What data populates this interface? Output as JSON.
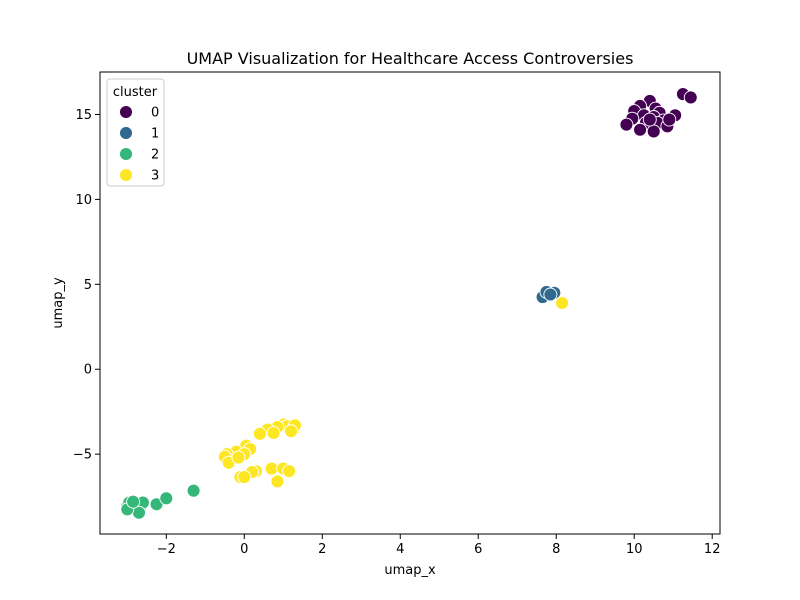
{
  "chart_data": {
    "type": "scatter",
    "title": "UMAP Visualization for Healthcare Access Controversies",
    "xlabel": "umap_x",
    "ylabel": "umap_y",
    "xlim": [
      -3.7,
      12.2
    ],
    "ylim": [
      -9.7,
      17.5
    ],
    "xticks": [
      -2,
      0,
      2,
      4,
      6,
      8,
      10,
      12
    ],
    "yticks": [
      -5,
      0,
      5,
      10,
      15
    ],
    "xtick_labels": [
      "−2",
      "0",
      "2",
      "4",
      "6",
      "8",
      "10",
      "12"
    ],
    "ytick_labels": [
      "−5",
      "0",
      "5",
      "10",
      "15"
    ],
    "grid": false,
    "legend": {
      "title": "cluster",
      "placement": "top-left"
    },
    "series": [
      {
        "name": "0",
        "color": "#440154",
        "points": [
          [
            11.25,
            16.2
          ],
          [
            11.45,
            16.0
          ],
          [
            10.4,
            15.8
          ],
          [
            10.15,
            15.5
          ],
          [
            10.0,
            15.2
          ],
          [
            10.55,
            15.35
          ],
          [
            10.65,
            15.1
          ],
          [
            10.25,
            14.95
          ],
          [
            10.5,
            14.85
          ],
          [
            10.75,
            14.65
          ],
          [
            11.05,
            14.95
          ],
          [
            9.95,
            14.75
          ],
          [
            10.3,
            14.5
          ],
          [
            10.6,
            14.5
          ],
          [
            9.8,
            14.4
          ],
          [
            10.85,
            14.3
          ],
          [
            10.15,
            14.1
          ],
          [
            10.5,
            14.0
          ],
          [
            10.4,
            14.7
          ],
          [
            10.9,
            14.7
          ]
        ]
      },
      {
        "name": "1",
        "color": "#31688e",
        "points": [
          [
            7.65,
            4.25
          ],
          [
            7.75,
            4.55
          ],
          [
            7.95,
            4.5
          ],
          [
            7.85,
            4.4
          ]
        ]
      },
      {
        "name": "2",
        "color": "#35b779",
        "points": [
          [
            -3.0,
            -8.05
          ],
          [
            -2.95,
            -7.85
          ],
          [
            -2.8,
            -7.95
          ],
          [
            -2.65,
            -8.05
          ],
          [
            -2.6,
            -7.85
          ],
          [
            -2.7,
            -8.45
          ],
          [
            -2.25,
            -7.95
          ],
          [
            -2.0,
            -7.6
          ],
          [
            -1.3,
            -7.15
          ],
          [
            -3.0,
            -8.25
          ],
          [
            -2.85,
            -7.8
          ]
        ]
      },
      {
        "name": "3",
        "color": "#fde725",
        "points": [
          [
            1.0,
            -3.25
          ],
          [
            1.1,
            -3.35
          ],
          [
            1.25,
            -3.55
          ],
          [
            1.3,
            -3.3
          ],
          [
            0.85,
            -3.4
          ],
          [
            0.6,
            -3.55
          ],
          [
            0.75,
            -3.75
          ],
          [
            0.4,
            -3.8
          ],
          [
            1.2,
            -3.65
          ],
          [
            0.05,
            -4.5
          ],
          [
            0.15,
            -4.7
          ],
          [
            -0.2,
            -4.85
          ],
          [
            -0.45,
            -5.0
          ],
          [
            -0.5,
            -5.15
          ],
          [
            -0.4,
            -5.5
          ],
          [
            0.0,
            -5.0
          ],
          [
            -0.15,
            -5.2
          ],
          [
            0.3,
            -6.0
          ],
          [
            0.2,
            -6.05
          ],
          [
            0.7,
            -5.85
          ],
          [
            1.0,
            -5.85
          ],
          [
            1.15,
            -6.0
          ],
          [
            -0.1,
            -6.35
          ],
          [
            0.0,
            -6.35
          ],
          [
            0.85,
            -6.6
          ],
          [
            8.15,
            3.9
          ]
        ]
      }
    ]
  }
}
